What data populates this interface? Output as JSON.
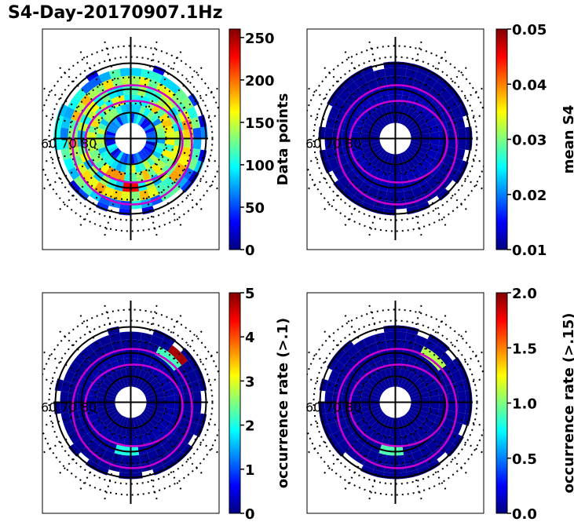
{
  "title": "S4-Day-20170907.1Hz",
  "colormap": [
    "#00007f",
    "#0000ff",
    "#007fff",
    "#00ffff",
    "#7fff7f",
    "#ffff00",
    "#ff7f00",
    "#ff0000",
    "#7f0000"
  ],
  "colors": {
    "axis": "#000000",
    "contour": "#cc00cc",
    "background": "#00008f"
  },
  "polar_labels": [
    "60",
    "70",
    "80"
  ],
  "chart_data": [
    {
      "type": "heatmap",
      "panel": "top-left",
      "plot_kind": "polar",
      "colorbar_label": "Data points",
      "clim": [
        0,
        260
      ],
      "colorbar_ticks": [
        "0",
        "50",
        "100",
        "150",
        "200",
        "250"
      ],
      "colorbar_tick_values": [
        0,
        50,
        100,
        150,
        200,
        250
      ],
      "ring_values": [
        60,
        110,
        140,
        120,
        150,
        90,
        60
      ],
      "hotspots": [
        {
          "ring": 3,
          "angle_deg": 180,
          "value": 230
        },
        {
          "ring": 2,
          "angle_deg": 200,
          "value": 190
        }
      ]
    },
    {
      "type": "heatmap",
      "panel": "top-right",
      "plot_kind": "polar",
      "colorbar_label": "mean S4",
      "clim": [
        0.01,
        0.05
      ],
      "colorbar_ticks": [
        "0.01",
        "0.02",
        "0.03",
        "0.04",
        "0.05"
      ],
      "colorbar_tick_values": [
        0.01,
        0.02,
        0.03,
        0.04,
        0.05
      ],
      "ring_values": [
        0.011,
        0.011,
        0.012,
        0.012,
        0.011,
        0.011,
        0.011
      ],
      "hotspots": []
    },
    {
      "type": "heatmap",
      "panel": "bottom-left",
      "plot_kind": "polar",
      "colorbar_label": "occurrence rate (>.1)",
      "clim": [
        0,
        5
      ],
      "colorbar_ticks": [
        "0",
        "1",
        "2",
        "3",
        "4",
        "5"
      ],
      "colorbar_tick_values": [
        0,
        1,
        2,
        3,
        4,
        5
      ],
      "ring_values": [
        0.1,
        0.1,
        0.2,
        0.2,
        0.1,
        0.1,
        0.1
      ],
      "hotspots": [
        {
          "ring": 5,
          "angle_deg": 45,
          "value": 4.8
        },
        {
          "ring": 4,
          "angle_deg": 40,
          "value": 2.2
        },
        {
          "ring": 3,
          "angle_deg": 185,
          "value": 2.0
        }
      ]
    },
    {
      "type": "heatmap",
      "panel": "bottom-right",
      "plot_kind": "polar",
      "colorbar_label": "occurrence rate (>.15)",
      "clim": [
        0,
        2
      ],
      "colorbar_ticks": [
        "0.0",
        "0.5",
        "1.0",
        "1.5",
        "2.0"
      ],
      "colorbar_tick_values": [
        0,
        0.5,
        1.0,
        1.5,
        2.0
      ],
      "ring_values": [
        0.05,
        0.05,
        0.05,
        0.05,
        0.05,
        0.05,
        0.05
      ],
      "hotspots": [
        {
          "ring": 4,
          "angle_deg": 40,
          "value": 1.1
        },
        {
          "ring": 3,
          "angle_deg": 185,
          "value": 0.9
        }
      ]
    }
  ]
}
